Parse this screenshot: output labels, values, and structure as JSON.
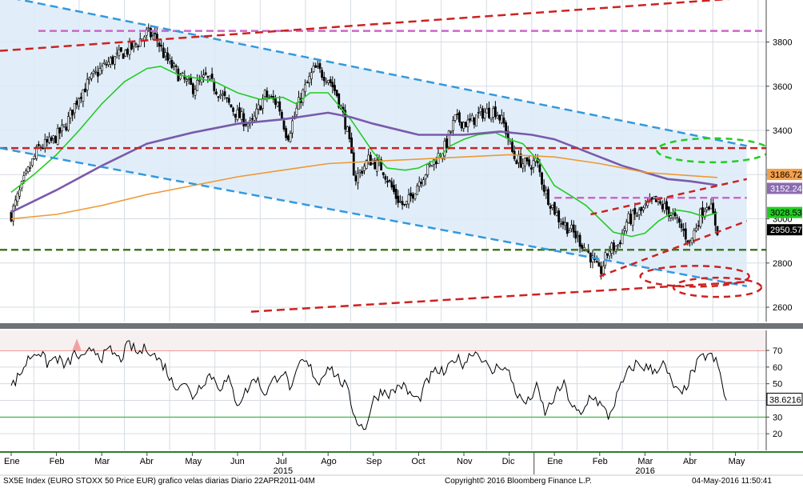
{
  "chart_data": [
    {
      "type": "candlestick",
      "title": "SX5E Index (EURO STOXX 50 Price EUR)",
      "x_months": [
        {
          "label": "Ene",
          "year": "2015",
          "index": 0
        },
        {
          "label": "Feb",
          "year": "2015",
          "index": 1
        },
        {
          "label": "Mar",
          "year": "2015",
          "index": 2
        },
        {
          "label": "Abr",
          "year": "2015",
          "index": 3
        },
        {
          "label": "May",
          "year": "2015",
          "index": 4
        },
        {
          "label": "Jun",
          "year": "2015",
          "index": 5
        },
        {
          "label": "Jul",
          "year": "2015",
          "index": 6
        },
        {
          "label": "Ago",
          "year": "2015",
          "index": 7
        },
        {
          "label": "Sep",
          "year": "2015",
          "index": 8
        },
        {
          "label": "Oct",
          "year": "2015",
          "index": 9
        },
        {
          "label": "Nov",
          "year": "2015",
          "index": 10
        },
        {
          "label": "Dic",
          "year": "2015",
          "index": 11
        },
        {
          "label": "Ene",
          "year": "2016",
          "index": 12
        },
        {
          "label": "Feb",
          "year": "2016",
          "index": 13
        },
        {
          "label": "Mar",
          "year": "2016",
          "index": 14
        },
        {
          "label": "Abr",
          "year": "2016",
          "index": 15
        },
        {
          "label": "May",
          "year": "2016",
          "index": 16
        }
      ],
      "year_labels": [
        {
          "label": "2015",
          "month_index": 6.0
        },
        {
          "label": "2016",
          "month_index": 14.0
        }
      ],
      "y_ticks": [
        2600,
        2800,
        3000,
        3200,
        3400,
        3600,
        3800
      ],
      "ylim": [
        2535,
        3990
      ],
      "series": [
        {
          "role": "ohlc",
          "color": "#000000"
        },
        {
          "role": "ma-short",
          "color": "#22cc22",
          "points": [
            [
              0.0,
              3120
            ],
            [
              0.5,
              3200
            ],
            [
              1.0,
              3290
            ],
            [
              1.5,
              3400
            ],
            [
              2.0,
              3520
            ],
            [
              2.5,
              3620
            ],
            [
              3.0,
              3680
            ],
            [
              3.3,
              3690
            ],
            [
              3.7,
              3650
            ],
            [
              4.0,
              3640
            ],
            [
              4.5,
              3620
            ],
            [
              5.0,
              3570
            ],
            [
              5.5,
              3540
            ],
            [
              6.0,
              3550
            ],
            [
              6.3,
              3520
            ],
            [
              6.6,
              3570
            ],
            [
              7.0,
              3570
            ],
            [
              7.5,
              3450
            ],
            [
              8.0,
              3300
            ],
            [
              8.3,
              3230
            ],
            [
              8.7,
              3220
            ],
            [
              9.0,
              3230
            ],
            [
              9.4,
              3270
            ],
            [
              9.7,
              3330
            ],
            [
              10.0,
              3360
            ],
            [
              10.3,
              3380
            ],
            [
              10.7,
              3390
            ],
            [
              11.0,
              3360
            ],
            [
              11.3,
              3340
            ],
            [
              11.7,
              3250
            ],
            [
              12.0,
              3150
            ],
            [
              12.4,
              3100
            ],
            [
              12.7,
              3060
            ],
            [
              13.0,
              3000
            ],
            [
              13.3,
              2940
            ],
            [
              13.7,
              2920
            ],
            [
              14.0,
              2935
            ],
            [
              14.3,
              2990
            ],
            [
              14.7,
              3040
            ],
            [
              15.0,
              3030
            ],
            [
              15.3,
              3010
            ],
            [
              15.6,
              3028
            ]
          ]
        },
        {
          "role": "ma-medium",
          "color": "#7a5aaa",
          "points": [
            [
              0.0,
              3030
            ],
            [
              1.0,
              3130
            ],
            [
              2.0,
              3240
            ],
            [
              3.0,
              3340
            ],
            [
              4.0,
              3390
            ],
            [
              5.0,
              3430
            ],
            [
              6.0,
              3450
            ],
            [
              7.0,
              3480
            ],
            [
              7.5,
              3460
            ],
            [
              8.0,
              3430
            ],
            [
              9.0,
              3380
            ],
            [
              10.0,
              3380
            ],
            [
              10.8,
              3395
            ],
            [
              11.5,
              3380
            ],
            [
              12.0,
              3360
            ],
            [
              12.5,
              3320
            ],
            [
              13.0,
              3280
            ],
            [
              13.5,
              3240
            ],
            [
              14.0,
              3210
            ],
            [
              14.5,
              3180
            ],
            [
              15.0,
              3170
            ],
            [
              15.6,
              3152
            ]
          ]
        },
        {
          "role": "ma-long",
          "color": "#ee9933",
          "points": [
            [
              0.0,
              3000
            ],
            [
              1.0,
              3020
            ],
            [
              2.0,
              3060
            ],
            [
              3.0,
              3110
            ],
            [
              4.0,
              3150
            ],
            [
              5.0,
              3190
            ],
            [
              6.0,
              3220
            ],
            [
              7.0,
              3250
            ],
            [
              8.0,
              3260
            ],
            [
              9.0,
              3270
            ],
            [
              10.0,
              3280
            ],
            [
              11.0,
              3290
            ],
            [
              12.0,
              3280
            ],
            [
              13.0,
              3250
            ],
            [
              14.0,
              3210
            ],
            [
              15.0,
              3195
            ],
            [
              15.6,
              3187
            ]
          ]
        }
      ],
      "horizontal_levels": [
        {
          "value": 3850,
          "color": "#cc66cc",
          "style": "dashed"
        },
        {
          "value": 3320,
          "color": "#cc2222",
          "style": "dashed"
        },
        {
          "value": 3095,
          "color": "#cc66cc",
          "style": "dashed"
        },
        {
          "value": 2860,
          "color": "#447722",
          "style": "dashed"
        }
      ],
      "trendlines": [
        {
          "color": "#3399dd",
          "from": [
            -0.25,
            4010
          ],
          "to": [
            16.25,
            3330
          ]
        },
        {
          "color": "#3399dd",
          "from": [
            -0.25,
            3320
          ],
          "to": [
            16.25,
            2695
          ]
        },
        {
          "color": "#cc2222",
          "from": [
            -0.25,
            3760
          ],
          "to": [
            16.25,
            4000
          ]
        },
        {
          "color": "#cc2222",
          "from": [
            5.3,
            2580
          ],
          "to": [
            16.25,
            2715
          ]
        }
      ],
      "last_value_labels": [
        {
          "value": "3186.72",
          "color": "#f5a04a"
        },
        {
          "value": "3152.24",
          "color": "#8c6bb0"
        },
        {
          "value": "3028.53",
          "color": "#22cc22"
        },
        {
          "value": "2950.57",
          "color": "#000000"
        }
      ],
      "ohlc_anchors": [
        [
          0.0,
          3020
        ],
        [
          0.3,
          3180
        ],
        [
          0.6,
          3320
        ],
        [
          0.9,
          3350
        ],
        [
          1.2,
          3420
        ],
        [
          1.5,
          3560
        ],
        [
          1.8,
          3640
        ],
        [
          2.1,
          3700
        ],
        [
          2.4,
          3740
        ],
        [
          2.7,
          3780
        ],
        [
          3.0,
          3840
        ],
        [
          3.2,
          3820
        ],
        [
          3.4,
          3730
        ],
        [
          3.7,
          3650
        ],
        [
          4.0,
          3590
        ],
        [
          4.3,
          3640
        ],
        [
          4.6,
          3570
        ],
        [
          5.0,
          3470
        ],
        [
          5.3,
          3420
        ],
        [
          5.6,
          3560
        ],
        [
          5.9,
          3520
        ],
        [
          6.1,
          3370
        ],
        [
          6.4,
          3550
        ],
        [
          6.7,
          3680
        ],
        [
          7.0,
          3640
        ],
        [
          7.2,
          3560
        ],
        [
          7.4,
          3420
        ],
        [
          7.6,
          3180
        ],
        [
          7.9,
          3270
        ],
        [
          8.2,
          3230
        ],
        [
          8.5,
          3100
        ],
        [
          8.7,
          3050
        ],
        [
          9.0,
          3170
        ],
        [
          9.3,
          3250
        ],
        [
          9.6,
          3330
        ],
        [
          9.8,
          3450
        ],
        [
          10.1,
          3430
        ],
        [
          10.4,
          3480
        ],
        [
          10.7,
          3490
        ],
        [
          10.9,
          3420
        ],
        [
          11.1,
          3280
        ],
        [
          11.4,
          3240
        ],
        [
          11.6,
          3260
        ],
        [
          11.8,
          3120
        ],
        [
          12.1,
          3000
        ],
        [
          12.4,
          2940
        ],
        [
          12.6,
          2890
        ],
        [
          12.8,
          2830
        ],
        [
          13.0,
          2750
        ],
        [
          13.2,
          2860
        ],
        [
          13.4,
          2880
        ],
        [
          13.6,
          2990
        ],
        [
          13.9,
          3030
        ],
        [
          14.2,
          3080
        ],
        [
          14.5,
          3040
        ],
        [
          14.8,
          2960
        ],
        [
          15.0,
          2890
        ],
        [
          15.2,
          3010
        ],
        [
          15.4,
          3080
        ],
        [
          15.6,
          2950
        ]
      ]
    },
    {
      "type": "line",
      "indicator": "RSI",
      "y_ticks": [
        20,
        30,
        40,
        50,
        60,
        70
      ],
      "ylim": [
        10,
        82
      ],
      "reference_lines": [
        {
          "value": 70,
          "color": "#dd3333"
        },
        {
          "value": 30,
          "color": "#22aa22"
        }
      ],
      "last_value": "38.6216",
      "values_anchors": [
        [
          0.0,
          48
        ],
        [
          0.2,
          56
        ],
        [
          0.4,
          66
        ],
        [
          0.6,
          70
        ],
        [
          0.8,
          62
        ],
        [
          1.0,
          66
        ],
        [
          1.2,
          60
        ],
        [
          1.4,
          68
        ],
        [
          1.6,
          64
        ],
        [
          1.8,
          72
        ],
        [
          2.0,
          66
        ],
        [
          2.2,
          70
        ],
        [
          2.4,
          64
        ],
        [
          2.6,
          74
        ],
        [
          2.8,
          68
        ],
        [
          3.0,
          72
        ],
        [
          3.2,
          66
        ],
        [
          3.4,
          60
        ],
        [
          3.6,
          48
        ],
        [
          3.8,
          52
        ],
        [
          4.0,
          42
        ],
        [
          4.2,
          50
        ],
        [
          4.4,
          56
        ],
        [
          4.6,
          48
        ],
        [
          4.8,
          52
        ],
        [
          5.0,
          38
        ],
        [
          5.2,
          46
        ],
        [
          5.4,
          54
        ],
        [
          5.6,
          44
        ],
        [
          5.8,
          52
        ],
        [
          6.0,
          58
        ],
        [
          6.2,
          46
        ],
        [
          6.4,
          64
        ],
        [
          6.6,
          60
        ],
        [
          6.8,
          50
        ],
        [
          7.0,
          62
        ],
        [
          7.2,
          54
        ],
        [
          7.4,
          48
        ],
        [
          7.6,
          30
        ],
        [
          7.8,
          22
        ],
        [
          8.0,
          40
        ],
        [
          8.2,
          46
        ],
        [
          8.4,
          44
        ],
        [
          8.6,
          50
        ],
        [
          8.8,
          44
        ],
        [
          9.0,
          40
        ],
        [
          9.2,
          52
        ],
        [
          9.4,
          58
        ],
        [
          9.6,
          56
        ],
        [
          9.8,
          66
        ],
        [
          10.0,
          62
        ],
        [
          10.2,
          70
        ],
        [
          10.4,
          66
        ],
        [
          10.6,
          56
        ],
        [
          10.8,
          62
        ],
        [
          11.0,
          56
        ],
        [
          11.2,
          42
        ],
        [
          11.4,
          38
        ],
        [
          11.6,
          48
        ],
        [
          11.8,
          32
        ],
        [
          12.0,
          42
        ],
        [
          12.2,
          50
        ],
        [
          12.4,
          36
        ],
        [
          12.6,
          30
        ],
        [
          12.8,
          44
        ],
        [
          13.0,
          38
        ],
        [
          13.2,
          30
        ],
        [
          13.4,
          44
        ],
        [
          13.6,
          56
        ],
        [
          13.8,
          62
        ],
        [
          14.0,
          60
        ],
        [
          14.2,
          58
        ],
        [
          14.4,
          62
        ],
        [
          14.6,
          50
        ],
        [
          14.8,
          42
        ],
        [
          15.0,
          54
        ],
        [
          15.2,
          64
        ],
        [
          15.4,
          68
        ],
        [
          15.6,
          62
        ],
        [
          15.8,
          39
        ]
      ]
    }
  ],
  "footer": {
    "left": "SX5E Index (EURO STOXX 50 Price EUR) grafico velas diarias  Diario 22APR2011-04M",
    "center": "Copyright© 2016 Bloomberg Finance L.P.",
    "right": "04-May-2016 11:50:41"
  }
}
